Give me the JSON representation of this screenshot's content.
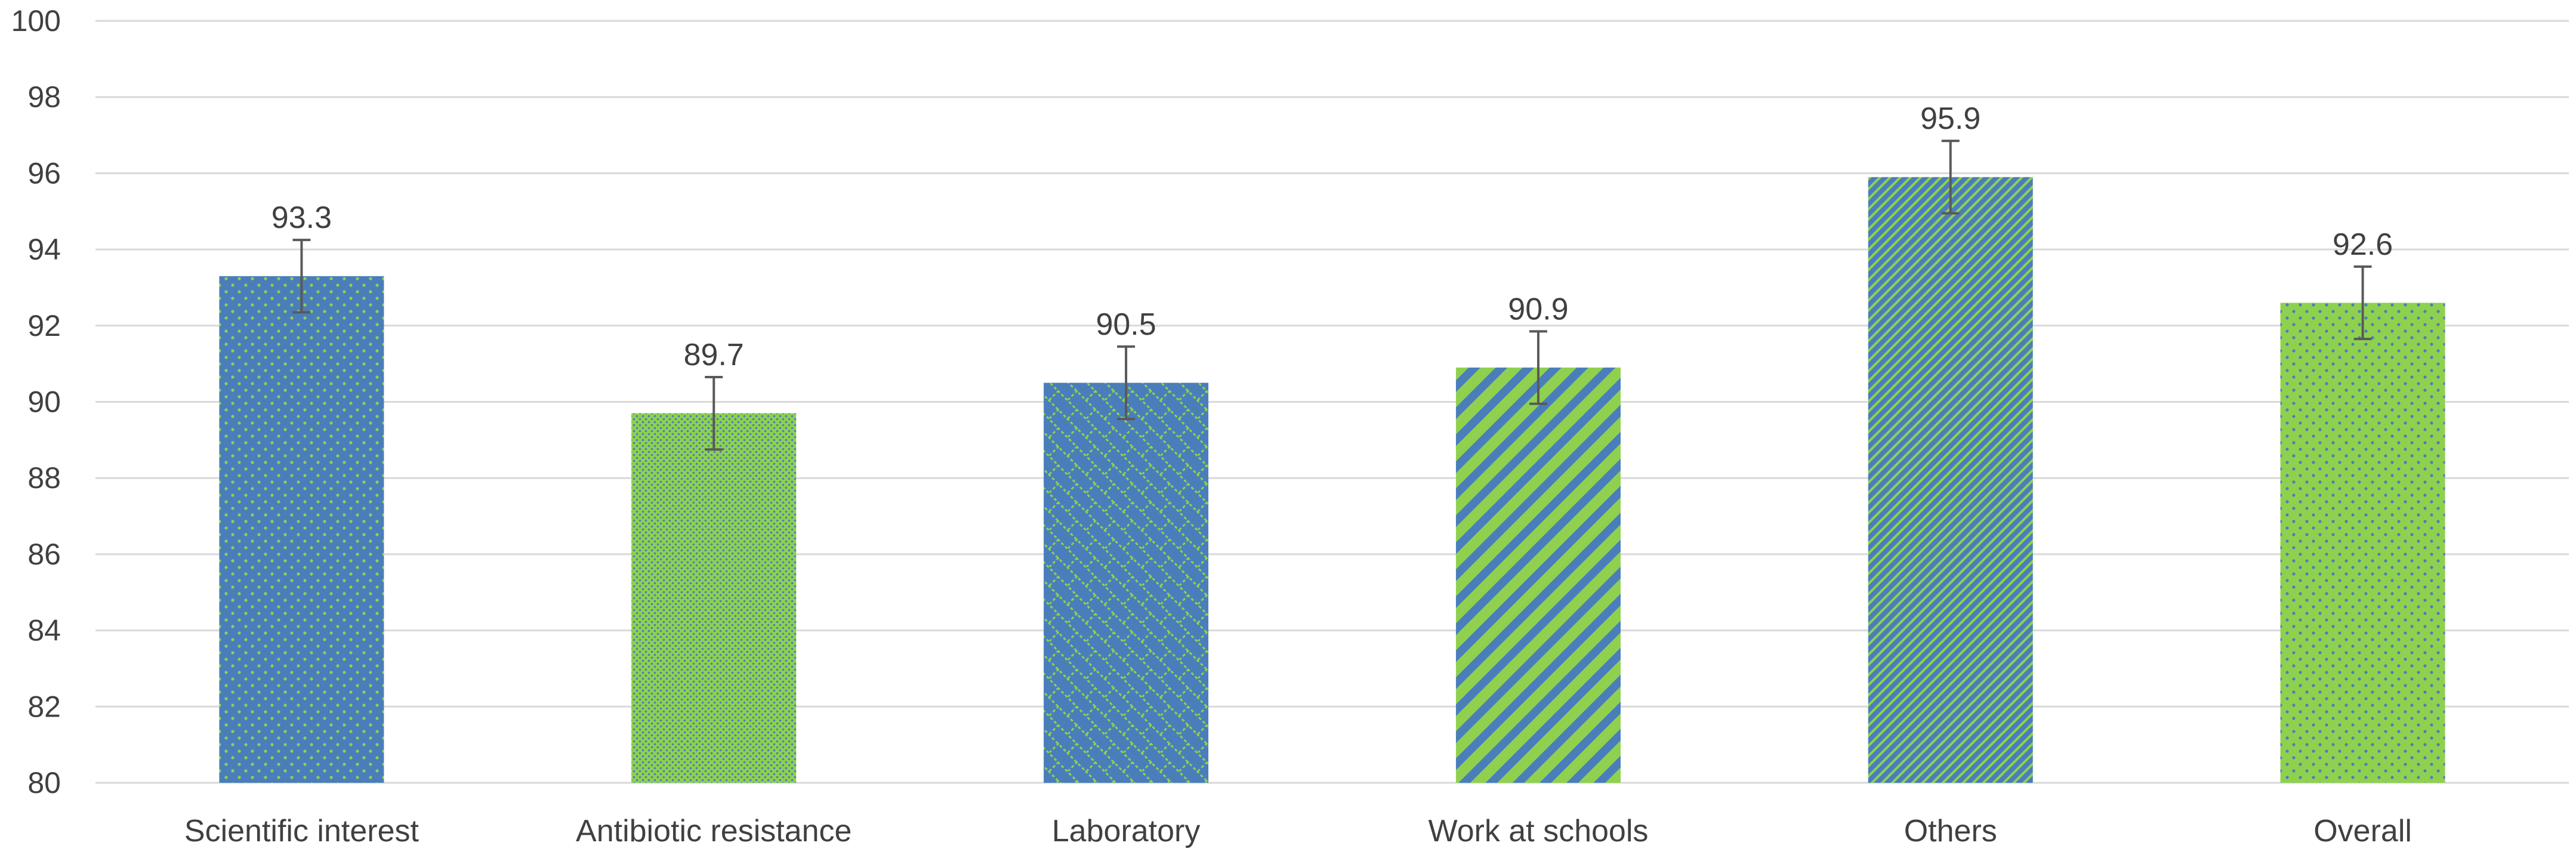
{
  "chart_data": {
    "type": "bar",
    "title": "",
    "xlabel": "",
    "ylabel": "",
    "ylim": [
      80,
      100
    ],
    "yticks": [
      80,
      82,
      84,
      86,
      88,
      90,
      92,
      94,
      96,
      98,
      100
    ],
    "grid": true,
    "legend": "none",
    "categories": [
      "Scientific interest",
      "Antibiotic resistance",
      "Laboratory",
      "Work at schools",
      "Others",
      "Overall"
    ],
    "values": [
      93.3,
      89.7,
      90.5,
      90.9,
      95.9,
      92.6
    ],
    "value_labels": [
      "93.3",
      "89.7",
      "90.5",
      "90.9",
      "95.9",
      "92.6"
    ],
    "error": [
      0.95,
      0.95,
      0.95,
      0.95,
      0.95,
      0.95
    ],
    "colors": {
      "blue": "#4a7ebb",
      "green": "#8fd14f",
      "grid": "#d9d9d9",
      "text": "#404040",
      "error_bar": "#595959"
    },
    "bar_styles": [
      {
        "fill": "blue",
        "pattern": "dots-green-on-blue"
      },
      {
        "fill": "green",
        "pattern": "dense-dots-blue-on-green"
      },
      {
        "fill": "blue",
        "pattern": "diagonal-brick-green-on-blue"
      },
      {
        "fill": "green",
        "pattern": "wide-diagonal-stripes-blue-on-green"
      },
      {
        "fill": "blue",
        "pattern": "narrow-diagonal-stripes-green-on-blue"
      },
      {
        "fill": "green",
        "pattern": "dots-blue-on-green"
      }
    ]
  }
}
